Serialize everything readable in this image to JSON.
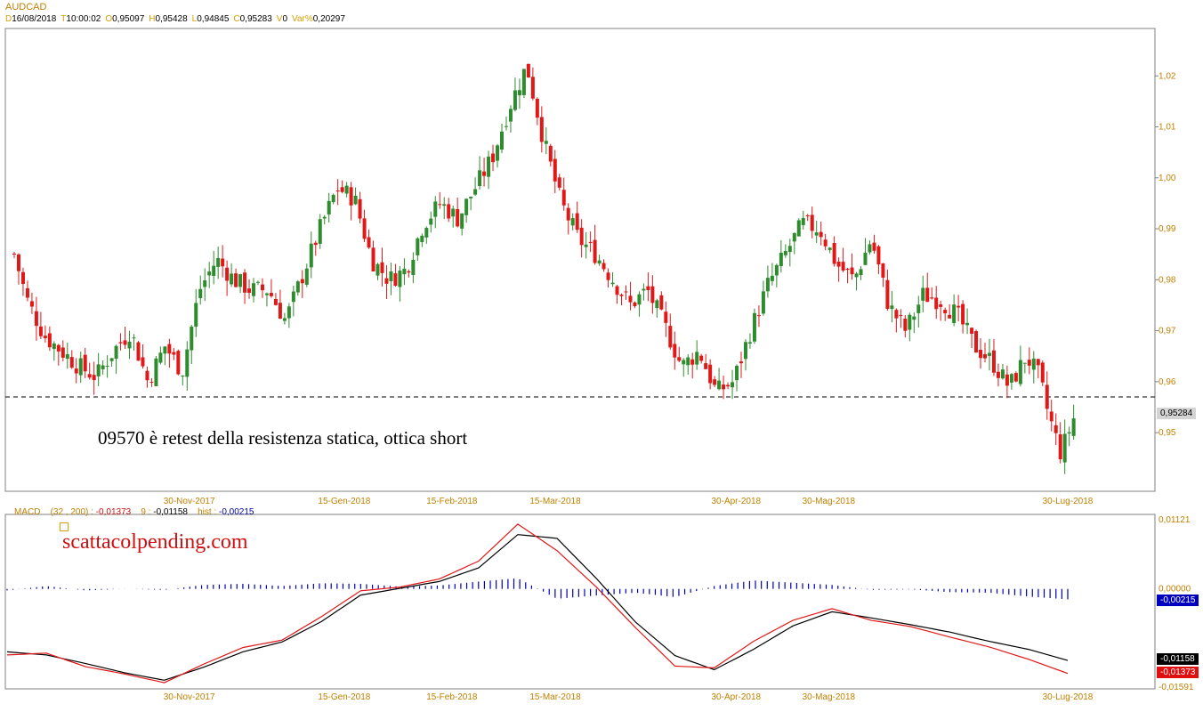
{
  "header": {
    "symbol": "AUDCAD",
    "fields": [
      {
        "key": "D",
        "value": "16/08/2018"
      },
      {
        "key": "T",
        "value": "10:00:02"
      },
      {
        "key": "O",
        "value": "0,95097"
      },
      {
        "key": "H",
        "value": "0,95428"
      },
      {
        "key": "L",
        "value": "0,94845"
      },
      {
        "key": "C",
        "value": "0,95283"
      },
      {
        "key": "V",
        "value": "0"
      },
      {
        "key": "Var%",
        "value": "0,20297"
      }
    ]
  },
  "annotation": "09570 è retest della resistenza statica, ottica short",
  "watermark": "scattacolpending.com",
  "macd_header": {
    "label": "MACD",
    "params": "(32 , 200) :",
    "macd_value": "-0,01373",
    "signal_label": "9 :",
    "signal_value": "-0,01158",
    "hist_label": "hist :",
    "hist_value": "-0,00215"
  },
  "colors": {
    "up": "#2e8b2e",
    "down": "#e01818",
    "axis_text": "#c08000",
    "macd_line": "#e01818",
    "signal_line": "#000000",
    "histogram": "#0000b0"
  },
  "chart_data": [
    {
      "type": "candlestick",
      "title": "AUDCAD",
      "x_ticks": [
        "30-Nov-2017",
        "15-Gen-2018",
        "15-Feb-2018",
        "15-Mar-2018",
        "30-Apr-2018",
        "30-Mag-2018",
        "30-Lug-2018"
      ],
      "y_ticks": [
        "1,02",
        "1,01",
        "1,00",
        "0,99",
        "0,98",
        "0,97",
        "0,96",
        "0,95"
      ],
      "ylim": [
        0.9385,
        1.0293
      ],
      "last_price_label": "0,95284",
      "last_price": 0.95284,
      "support_level": 0.957,
      "close_path": [
        [
          0,
          0.985
        ],
        [
          6,
          0.976
        ],
        [
          14,
          0.969
        ],
        [
          22,
          0.966
        ],
        [
          30,
          0.963
        ],
        [
          38,
          0.961
        ],
        [
          46,
          0.966
        ],
        [
          54,
          0.97
        ],
        [
          62,
          0.96
        ],
        [
          70,
          0.967
        ],
        [
          78,
          0.962
        ],
        [
          86,
          0.978
        ],
        [
          94,
          0.984
        ],
        [
          102,
          0.98
        ],
        [
          110,
          0.978
        ],
        [
          118,
          0.978
        ],
        [
          126,
          0.972
        ],
        [
          134,
          0.981
        ],
        [
          142,
          0.99
        ],
        [
          150,
          0.998
        ],
        [
          158,
          0.996
        ],
        [
          166,
          0.984
        ],
        [
          174,
          0.98
        ],
        [
          182,
          0.982
        ],
        [
          190,
          0.991
        ],
        [
          198,
          0.995
        ],
        [
          206,
          0.992
        ],
        [
          214,
          0.998
        ],
        [
          222,
          1.004
        ],
        [
          230,
          1.014
        ],
        [
          238,
          1.022
        ],
        [
          246,
          1.007
        ],
        [
          254,
          0.995
        ],
        [
          262,
          0.988
        ],
        [
          270,
          0.985
        ],
        [
          278,
          0.98
        ],
        [
          286,
          0.975
        ],
        [
          294,
          0.978
        ],
        [
          302,
          0.971
        ],
        [
          310,
          0.963
        ],
        [
          318,
          0.966
        ],
        [
          326,
          0.958
        ],
        [
          334,
          0.96
        ],
        [
          342,
          0.97
        ],
        [
          350,
          0.979
        ],
        [
          358,
          0.985
        ],
        [
          366,
          0.991
        ],
        [
          374,
          0.99
        ],
        [
          382,
          0.983
        ],
        [
          390,
          0.98
        ],
        [
          398,
          0.988
        ],
        [
          406,
          0.975
        ],
        [
          414,
          0.97
        ],
        [
          422,
          0.977
        ],
        [
          430,
          0.976
        ],
        [
          438,
          0.973
        ],
        [
          446,
          0.967
        ],
        [
          454,
          0.964
        ],
        [
          462,
          0.959
        ],
        [
          470,
          0.965
        ],
        [
          476,
          0.961
        ],
        [
          480,
          0.954
        ],
        [
          486,
          0.946
        ],
        [
          492,
          0.9528
        ]
      ]
    },
    {
      "type": "line",
      "title": "MACD",
      "y_ticks": [
        "0,01121",
        "0,00000",
        "-0,01591"
      ],
      "ylim": [
        -0.01591,
        0.01121
      ],
      "x_ticks": [
        "30-Nov-2017",
        "15-Gen-2018",
        "15-Feb-2018",
        "15-Mar-2018",
        "30-Apr-2018",
        "30-Mag-2018",
        "30-Lug-2018"
      ],
      "value_labels": {
        "hist": "-0,00215",
        "signal": "-0,01158",
        "macd": "-0,01373"
      },
      "series": [
        {
          "name": "MACD",
          "values": [
            [
              0,
              -0.0107
            ],
            [
              20,
              -0.0104
            ],
            [
              40,
              -0.0126
            ],
            [
              60,
              -0.0138
            ],
            [
              80,
              -0.0152
            ],
            [
              100,
              -0.0122
            ],
            [
              120,
              -0.0095
            ],
            [
              140,
              -0.0083
            ],
            [
              160,
              -0.0045
            ],
            [
              180,
              -0.0003
            ],
            [
              200,
              0.0003
            ],
            [
              220,
              0.0016
            ],
            [
              240,
              0.0045
            ],
            [
              260,
              0.0105
            ],
            [
              280,
              0.0062
            ],
            [
              300,
              0.0003
            ],
            [
              320,
              -0.0063
            ],
            [
              340,
              -0.0125
            ],
            [
              360,
              -0.0128
            ],
            [
              380,
              -0.0085
            ],
            [
              400,
              -0.0051
            ],
            [
              420,
              -0.0032
            ],
            [
              440,
              -0.0051
            ],
            [
              460,
              -0.0061
            ],
            [
              480,
              -0.0078
            ],
            [
              500,
              -0.0094
            ],
            [
              520,
              -0.0114
            ],
            [
              540,
              -0.0137
            ]
          ]
        },
        {
          "name": "Signal",
          "values": [
            [
              0,
              -0.0102
            ],
            [
              20,
              -0.0107
            ],
            [
              40,
              -0.0121
            ],
            [
              60,
              -0.0136
            ],
            [
              80,
              -0.0148
            ],
            [
              100,
              -0.0127
            ],
            [
              120,
              -0.0102
            ],
            [
              140,
              -0.0086
            ],
            [
              160,
              -0.0053
            ],
            [
              180,
              -0.001
            ],
            [
              200,
              0.0001
            ],
            [
              220,
              0.0012
            ],
            [
              240,
              0.0034
            ],
            [
              260,
              0.0088
            ],
            [
              280,
              0.0082
            ],
            [
              300,
              0.0017
            ],
            [
              320,
              -0.0054
            ],
            [
              340,
              -0.0108
            ],
            [
              360,
              -0.0131
            ],
            [
              380,
              -0.0098
            ],
            [
              400,
              -0.006
            ],
            [
              420,
              -0.0037
            ],
            [
              440,
              -0.0047
            ],
            [
              460,
              -0.0058
            ],
            [
              480,
              -0.007
            ],
            [
              500,
              -0.0085
            ],
            [
              520,
              -0.0098
            ],
            [
              540,
              -0.0116
            ]
          ]
        }
      ]
    }
  ]
}
